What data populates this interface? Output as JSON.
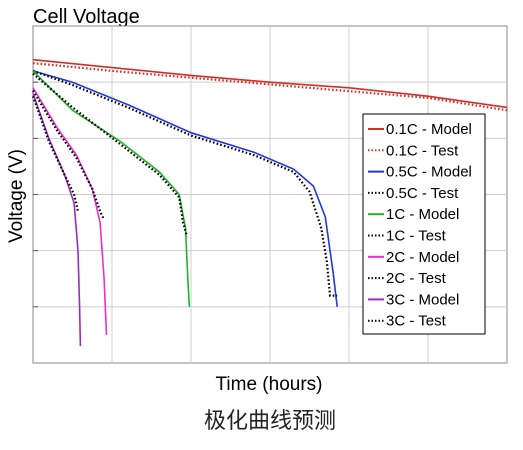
{
  "chart_data": {
    "type": "line",
    "title": "Cell Voltage",
    "xlabel": "Time (hours)",
    "ylabel": "Voltage (V)",
    "caption": "极化曲线预测",
    "grid": true,
    "legend_position": "right",
    "xlim": [
      0,
      6
    ],
    "ylim": [
      0,
      6
    ],
    "series": [
      {
        "name": "0.1C - Model",
        "color": "#d0302a",
        "style": "solid",
        "x": [
          0,
          1,
          2,
          3,
          4,
          5,
          6
        ],
        "y": [
          5.4,
          5.26,
          5.12,
          5.0,
          4.9,
          4.75,
          4.55
        ]
      },
      {
        "name": "0.1C - Test",
        "color": "#d0302a",
        "style": "dotted",
        "x": [
          0,
          1,
          2,
          3,
          4,
          5,
          6
        ],
        "y": [
          5.34,
          5.2,
          5.08,
          4.96,
          4.84,
          4.72,
          4.5
        ]
      },
      {
        "name": "0.5C - Model",
        "color": "#1f37e0",
        "style": "solid",
        "x": [
          0,
          0.5,
          1.2,
          2.0,
          2.8,
          3.3,
          3.55,
          3.7,
          3.8,
          3.85
        ],
        "y": [
          5.2,
          5.0,
          4.6,
          4.1,
          3.75,
          3.45,
          3.15,
          2.6,
          1.6,
          1.0
        ]
      },
      {
        "name": "0.5C - Test",
        "color": "#000000",
        "style": "dotted",
        "x": [
          0,
          0.5,
          1.2,
          2.0,
          2.8,
          3.3,
          3.5,
          3.65,
          3.72,
          3.76,
          3.85
        ],
        "y": [
          5.2,
          4.95,
          4.55,
          4.05,
          3.7,
          3.4,
          3.05,
          2.4,
          1.8,
          1.2,
          1.2
        ]
      },
      {
        "name": "1C - Model",
        "color": "#1fb52a",
        "style": "solid",
        "x": [
          0,
          0.5,
          1.1,
          1.6,
          1.85,
          1.93,
          1.96,
          1.98
        ],
        "y": [
          5.2,
          4.5,
          3.95,
          3.4,
          3.0,
          2.4,
          1.5,
          1.0
        ]
      },
      {
        "name": "1C - Test",
        "color": "#000000",
        "style": "dotted",
        "x": [
          0,
          0.5,
          1.1,
          1.6,
          1.85,
          1.9,
          1.95
        ],
        "y": [
          5.15,
          4.55,
          3.9,
          3.35,
          2.95,
          2.5,
          2.25
        ]
      },
      {
        "name": "2C - Model",
        "color": "#ea2fd2",
        "style": "solid",
        "x": [
          0,
          0.3,
          0.55,
          0.75,
          0.85,
          0.9,
          0.93
        ],
        "y": [
          4.9,
          4.2,
          3.7,
          3.1,
          2.5,
          1.5,
          0.5
        ]
      },
      {
        "name": "2C - Test",
        "color": "#000000",
        "style": "dotted",
        "x": [
          0,
          0.3,
          0.55,
          0.75,
          0.85,
          0.9
        ],
        "y": [
          4.85,
          4.15,
          3.65,
          3.1,
          2.7,
          2.55
        ]
      },
      {
        "name": "3C - Model",
        "color": "#9a2bc0",
        "style": "solid",
        "x": [
          0,
          0.2,
          0.4,
          0.52,
          0.57,
          0.59,
          0.6
        ],
        "y": [
          4.8,
          4.0,
          3.35,
          2.85,
          2.0,
          1.0,
          0.3
        ]
      },
      {
        "name": "3C - Test",
        "color": "#000000",
        "style": "dotted",
        "x": [
          0,
          0.2,
          0.4,
          0.52,
          0.57
        ],
        "y": [
          4.75,
          3.95,
          3.35,
          3.0,
          2.7
        ]
      }
    ],
    "legend": [
      {
        "label": "0.1C - Model",
        "color": "#d0302a",
        "style": "solid"
      },
      {
        "label": "0.1C - Test",
        "color": "#d0302a",
        "style": "dotted"
      },
      {
        "label": "0.5C - Model",
        "color": "#1f37e0",
        "style": "solid"
      },
      {
        "label": "0.5C - Test",
        "color": "#000000",
        "style": "dotted"
      },
      {
        "label": "1C - Model",
        "color": "#1fb52a",
        "style": "solid"
      },
      {
        "label": "1C - Test",
        "color": "#000000",
        "style": "dotted"
      },
      {
        "label": "2C - Model",
        "color": "#ea2fd2",
        "style": "solid"
      },
      {
        "label": "2C - Test",
        "color": "#000000",
        "style": "dotted"
      },
      {
        "label": "3C - Model",
        "color": "#9a2bc0",
        "style": "solid"
      },
      {
        "label": "3C - Test",
        "color": "#000000",
        "style": "dotted"
      }
    ]
  }
}
